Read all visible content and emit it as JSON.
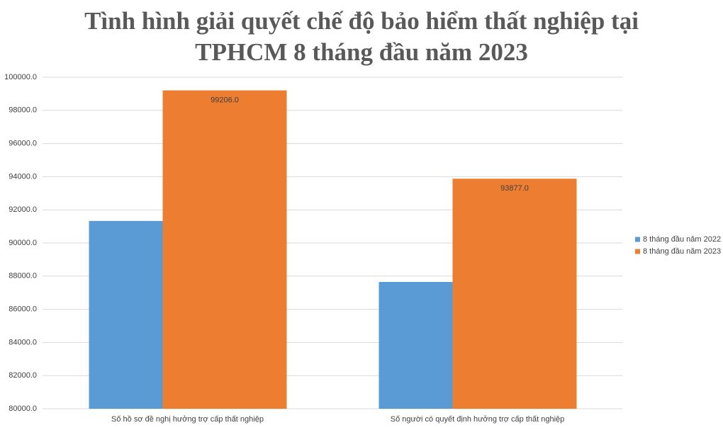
{
  "chart_data": {
    "type": "bar",
    "title": "Tình hình giải quyết chế độ bảo hiểm thất nghiệp tại TPHCM 8 tháng đầu năm 2023",
    "categories": [
      "Số hồ sơ đề nghị hưởng trợ cấp thất nghiệp",
      "Số người có quyết định hưởng trợ cấp thất nghiệp"
    ],
    "series": [
      {
        "name": "8 tháng đầu năm 2022",
        "color": "#5b9bd5",
        "values": [
          91330,
          87650
        ]
      },
      {
        "name": "8 tháng đầu năm 2023",
        "color": "#ed7d31",
        "values": [
          99206,
          93877
        ],
        "value_labels": [
          "99206.0",
          "93877.0"
        ]
      }
    ],
    "ylim": [
      80000,
      100000
    ],
    "yticks": [
      {
        "value": 80000,
        "label": "80000.0"
      },
      {
        "value": 82000,
        "label": "82000.0"
      },
      {
        "value": 84000,
        "label": "84000.0"
      },
      {
        "value": 86000,
        "label": "86000.0"
      },
      {
        "value": 88000,
        "label": "88000.0"
      },
      {
        "value": 90000,
        "label": "90000.0"
      },
      {
        "value": 92000,
        "label": "92000.0"
      },
      {
        "value": 94000,
        "label": "94000.0"
      },
      {
        "value": 96000,
        "label": "96000.0"
      },
      {
        "value": 98000,
        "label": "98000.0"
      },
      {
        "value": 100000,
        "label": "100000.0"
      }
    ],
    "grid": true,
    "legend": "right"
  }
}
